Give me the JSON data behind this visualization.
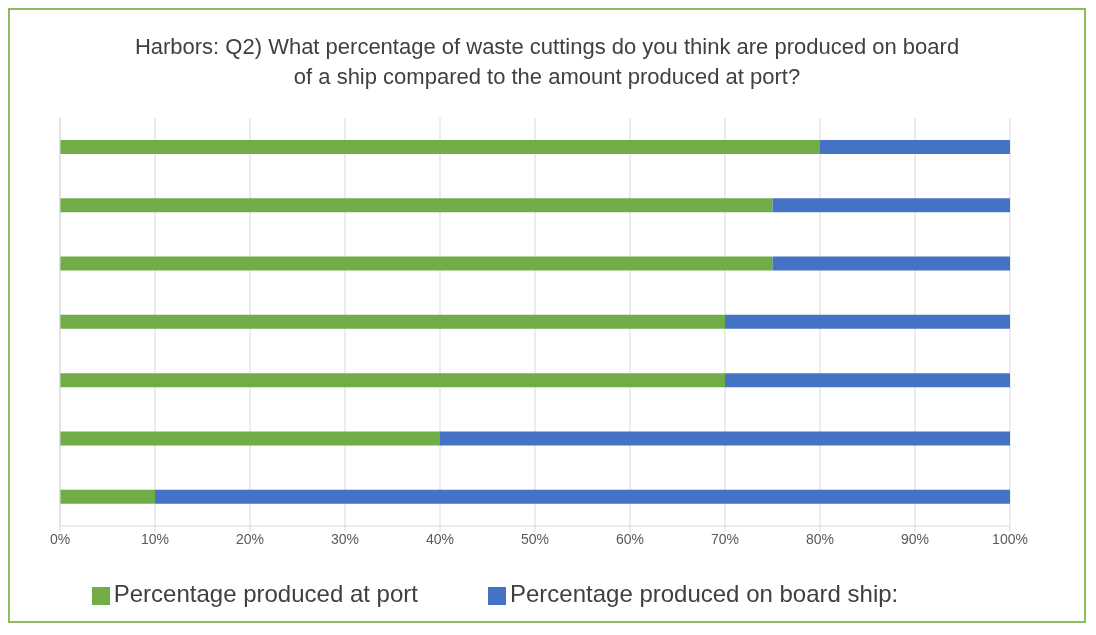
{
  "chart_data": {
    "type": "bar",
    "orientation": "horizontal",
    "stacked": true,
    "title": "Harbors: Q2) What percentage of waste cuttings do you think are produced on board of a ship compared to the amount produced at port?",
    "categories": [
      null,
      null,
      null,
      null,
      null,
      null,
      null
    ],
    "series": [
      {
        "name": "Percentage produced at port",
        "color": "#70ad47",
        "values": [
          80,
          75,
          75,
          70,
          70,
          40,
          10
        ]
      },
      {
        "name": "Percentage produced on board ship:",
        "color": "#4472c4",
        "values": [
          20,
          25,
          25,
          30,
          30,
          60,
          90
        ]
      }
    ],
    "xlim": [
      0,
      100
    ],
    "xticks": [
      {
        "value": 0,
        "label": "0%"
      },
      {
        "value": 10,
        "label": "10%"
      },
      {
        "value": 20,
        "label": "20%"
      },
      {
        "value": 30,
        "label": "30%"
      },
      {
        "value": 40,
        "label": "40%"
      },
      {
        "value": 50,
        "label": "50%"
      },
      {
        "value": 60,
        "label": "60%"
      },
      {
        "value": 70,
        "label": "70%"
      },
      {
        "value": 80,
        "label": "80%"
      },
      {
        "value": 90,
        "label": "90%"
      },
      {
        "value": 100,
        "label": "100%"
      }
    ],
    "grid": "x",
    "legend": "bottom",
    "tick_labels": "x"
  }
}
